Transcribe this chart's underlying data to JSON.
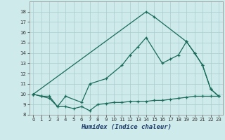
{
  "xlabel": "Humidex (Indice chaleur)",
  "bg_color": "#ceeaea",
  "line_color": "#1a6b5a",
  "grid_color": "#aacccc",
  "xlim": [
    -0.5,
    23.5
  ],
  "ylim": [
    8,
    19
  ],
  "yticks": [
    8,
    9,
    10,
    11,
    12,
    13,
    14,
    15,
    16,
    17,
    18
  ],
  "xticks": [
    0,
    1,
    2,
    3,
    4,
    5,
    6,
    7,
    8,
    9,
    10,
    11,
    12,
    13,
    14,
    15,
    16,
    17,
    18,
    19,
    20,
    21,
    22,
    23
  ],
  "line1_x": [
    0,
    1,
    2,
    3,
    4,
    5,
    6,
    7,
    8,
    9,
    10,
    11,
    12,
    13,
    14,
    15,
    16,
    17,
    18,
    19,
    20,
    21,
    22,
    23
  ],
  "line1_y": [
    10.0,
    9.8,
    9.6,
    8.8,
    8.8,
    8.6,
    8.8,
    8.4,
    9.0,
    9.1,
    9.2,
    9.2,
    9.3,
    9.3,
    9.3,
    9.4,
    9.4,
    9.5,
    9.6,
    9.7,
    9.8,
    9.8,
    9.8,
    9.8
  ],
  "line2_x": [
    0,
    1,
    2,
    3,
    4,
    6,
    7,
    9,
    11,
    12,
    13,
    14,
    16,
    17,
    18,
    19,
    20,
    21,
    22,
    23
  ],
  "line2_y": [
    10.0,
    9.8,
    9.8,
    8.8,
    9.8,
    9.2,
    11.0,
    11.5,
    12.8,
    13.8,
    14.6,
    15.5,
    13.0,
    13.4,
    13.8,
    15.1,
    14.0,
    12.8,
    10.5,
    9.8
  ],
  "line3_x": [
    0,
    14,
    15,
    19,
    20,
    21,
    22,
    23
  ],
  "line3_y": [
    10.0,
    18.0,
    17.5,
    15.1,
    14.0,
    12.8,
    10.5,
    9.8
  ]
}
